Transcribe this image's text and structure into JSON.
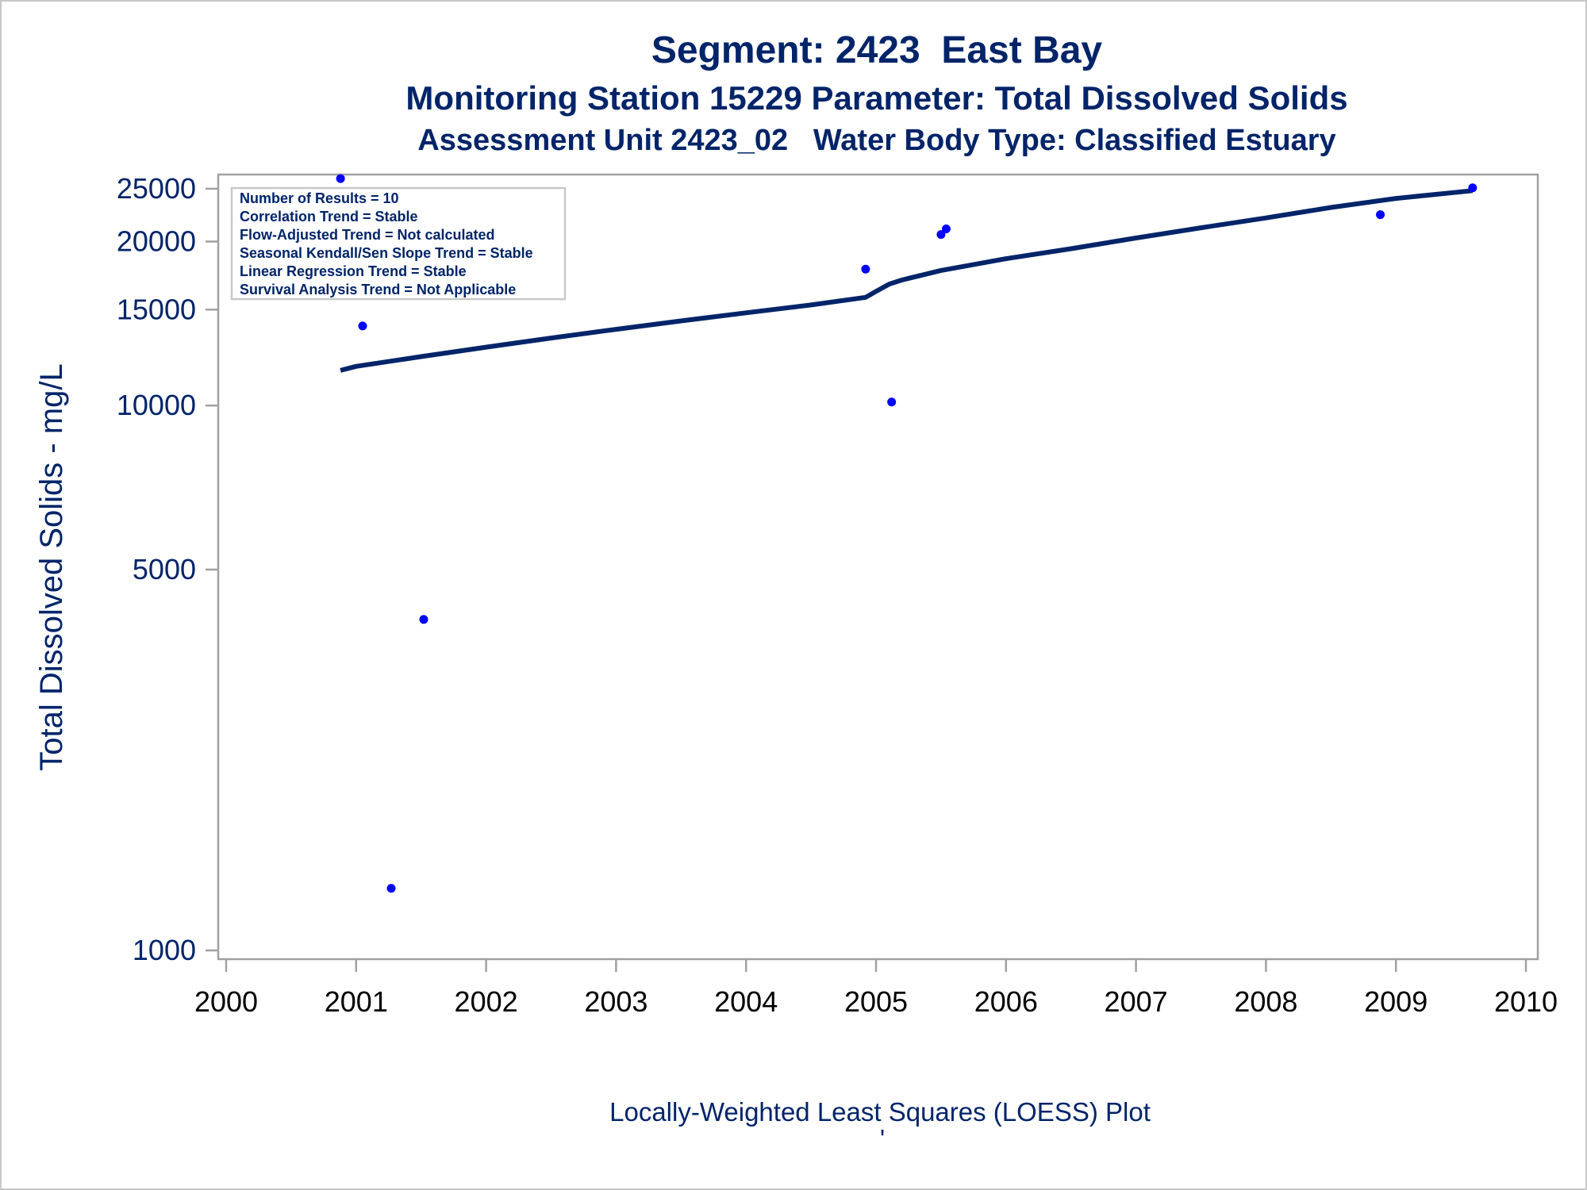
{
  "titles": {
    "line1": "Segment: 2423  East Bay",
    "line2": "Monitoring Station 15229 Parameter: Total Dissolved Solids",
    "line3": "Assessment Unit 2423_02   Water Body Type: Classified Estuary"
  },
  "legend_box": [
    "Number of Results = 10",
    "Correlation Trend = Stable",
    "Flow-Adjusted Trend = Not calculated",
    "Seasonal Kendall/Sen Slope Trend = Stable",
    "Linear Regression Trend = Stable",
    "Survival Analysis Trend = Not Applicable"
  ],
  "footnote": "Locally-Weighted Least Squares (LOESS) Plot",
  "footnote_mark": "'",
  "colors": {
    "text": "#002469",
    "points": "#0000ff",
    "line": "#002469",
    "frame": "#a0a0a0"
  },
  "chart_data": {
    "type": "scatter",
    "title": "Segment: 2423  East Bay",
    "ylabel": "Total Dissolved Solids - mg/L",
    "xlabel": "",
    "y_scale": "log",
    "xlim": [
      2000,
      2010
    ],
    "ylim": [
      1000,
      25500
    ],
    "x_ticks": [
      2000,
      2001,
      2002,
      2003,
      2004,
      2005,
      2006,
      2007,
      2008,
      2009,
      2010
    ],
    "y_ticks": [
      1000,
      5000,
      10000,
      15000,
      20000,
      25000
    ],
    "grid": false,
    "series": [
      {
        "type": "scatter",
        "x": [
          2000.88,
          2001.05,
          2001.27,
          2001.52,
          2004.92,
          2005.12,
          2005.5,
          2005.54,
          2008.88,
          2009.59
        ],
        "y": [
          26100,
          14000,
          1300,
          4050,
          17800,
          10150,
          20600,
          21100,
          22400,
          25100
        ]
      },
      {
        "type": "line",
        "x": [
          2000.88,
          2001.0,
          2001.5,
          2002.0,
          2002.5,
          2003.0,
          2003.5,
          2004.0,
          2004.5,
          2004.92,
          2005.0,
          2005.1,
          2005.2,
          2005.5,
          2006.0,
          2006.5,
          2007.0,
          2007.5,
          2008.0,
          2008.5,
          2009.0,
          2009.59
        ],
        "y": [
          11600,
          11800,
          12300,
          12800,
          13300,
          13800,
          14300,
          14800,
          15300,
          15800,
          16200,
          16700,
          17000,
          17700,
          18600,
          19400,
          20300,
          21200,
          22100,
          23100,
          24000,
          24800
        ]
      }
    ]
  }
}
